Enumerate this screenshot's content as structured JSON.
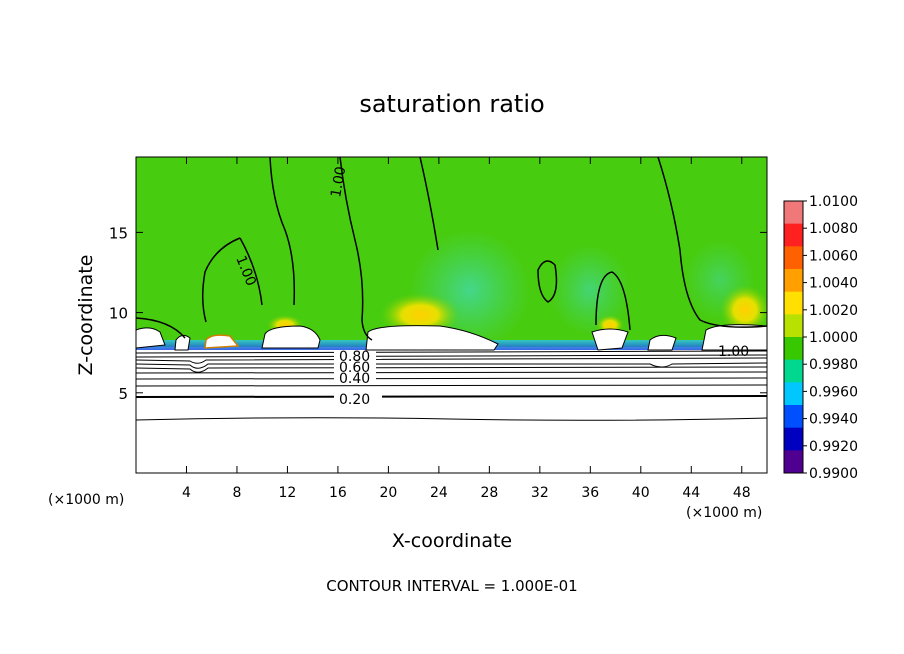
{
  "chart_data": {
    "type": "heatmap",
    "title": "saturation ratio",
    "xlabel": "X-coordinate",
    "ylabel": "Z-coordinate",
    "x_unit": "(×1000 m)",
    "z_unit": "(×1000 m)",
    "xlim": [
      0,
      50
    ],
    "ylim": [
      0,
      19.7
    ],
    "x_ticks": [
      "4",
      "8",
      "12",
      "16",
      "20",
      "24",
      "28",
      "32",
      "36",
      "40",
      "44",
      "48"
    ],
    "y_ticks": [
      "5",
      "10",
      "15"
    ],
    "footer": "CONTOUR INTERVAL = 1.000E-01",
    "colorbar": {
      "min": 0.99,
      "max": 1.01,
      "labels": [
        "1.0100",
        "1.0080",
        "1.0060",
        "1.0040",
        "1.0020",
        "1.0000",
        "0.9980",
        "0.9960",
        "0.9940",
        "0.9920",
        "0.9900"
      ],
      "colors": [
        "#f07878",
        "#ff2020",
        "#ff6000",
        "#ffa000",
        "#ffe000",
        "#b8e000",
        "#38c800",
        "#00d890",
        "#00c8ff",
        "#0050ff",
        "#0000c0",
        "#500090"
      ]
    },
    "contour_labels": [
      {
        "text": "0.20",
        "value": 0.2
      },
      {
        "text": "0.40",
        "value": 0.4
      },
      {
        "text": "0.60",
        "value": 0.6
      },
      {
        "text": "0.80",
        "value": 0.8
      },
      {
        "text": "1.00",
        "value": 1.0
      }
    ],
    "field_description": {
      "background_value": 0.9985,
      "cloud_base_km": 8.0
    }
  }
}
